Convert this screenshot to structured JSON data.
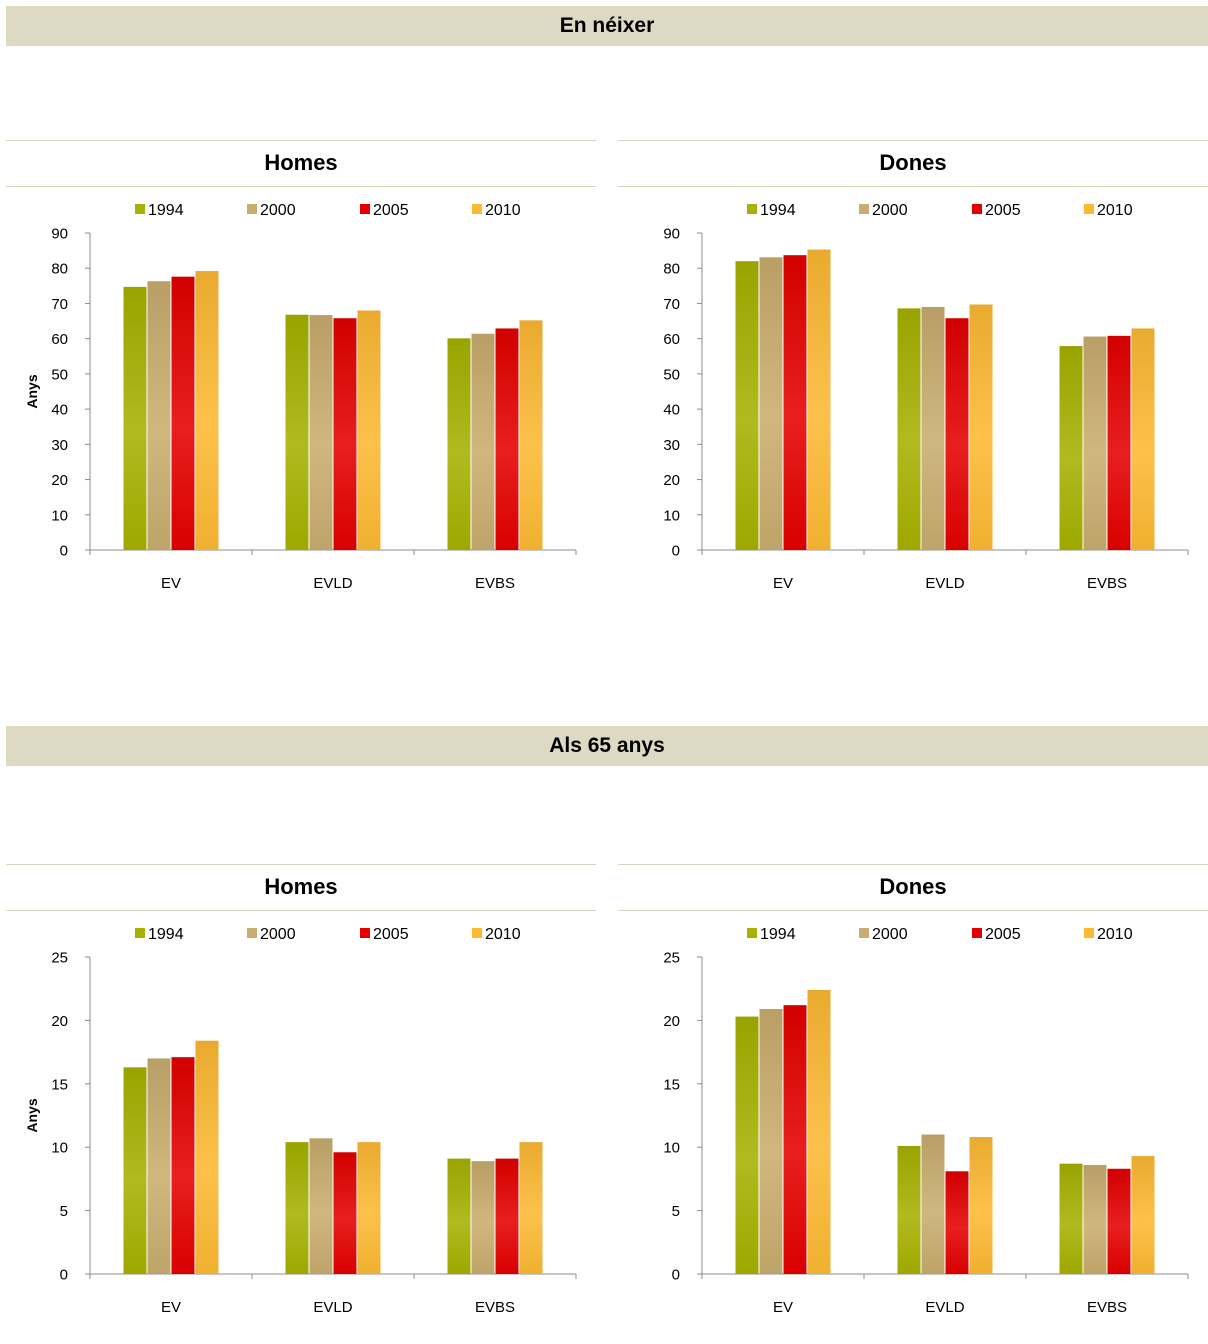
{
  "sections": [
    {
      "title": "En néixer"
    },
    {
      "title": "Als 65 anys"
    }
  ],
  "legend": [
    "1994",
    "2000",
    "2005",
    "2010"
  ],
  "colors": [
    "#a6b100",
    "#c9ad6e",
    "#e40000",
    "#fdb933"
  ],
  "chart_data": [
    {
      "type": "bar",
      "title": "Homes",
      "ylabel": "Anys",
      "categories": [
        "EV",
        "EVLD",
        "EVBS"
      ],
      "ylim": [
        0,
        90
      ],
      "yticks": [
        0,
        10,
        20,
        30,
        40,
        50,
        60,
        70,
        80,
        90
      ],
      "legend_position": "top",
      "series": [
        {
          "name": "1994",
          "values": [
            74.7,
            66.8,
            60.1
          ]
        },
        {
          "name": "2000",
          "values": [
            76.3,
            66.7,
            61.4
          ]
        },
        {
          "name": "2005",
          "values": [
            77.6,
            65.8,
            62.9
          ]
        },
        {
          "name": "2010",
          "values": [
            79.2,
            68.0,
            65.2
          ]
        }
      ]
    },
    {
      "type": "bar",
      "title": "Dones",
      "ylabel": "",
      "categories": [
        "EV",
        "EVLD",
        "EVBS"
      ],
      "ylim": [
        0,
        90
      ],
      "yticks": [
        0,
        10,
        20,
        30,
        40,
        50,
        60,
        70,
        80,
        90
      ],
      "legend_position": "top",
      "series": [
        {
          "name": "1994",
          "values": [
            82.0,
            68.6,
            57.9
          ]
        },
        {
          "name": "2000",
          "values": [
            83.1,
            69.0,
            60.6
          ]
        },
        {
          "name": "2005",
          "values": [
            83.7,
            65.8,
            60.8
          ]
        },
        {
          "name": "2010",
          "values": [
            85.3,
            69.7,
            62.9
          ]
        }
      ]
    },
    {
      "type": "bar",
      "title": "Homes",
      "ylabel": "Anys",
      "categories": [
        "EV",
        "EVLD",
        "EVBS"
      ],
      "ylim": [
        0,
        25
      ],
      "yticks": [
        0,
        5,
        10,
        15,
        20,
        25
      ],
      "legend_position": "top",
      "series": [
        {
          "name": "1994",
          "values": [
            16.3,
            10.4,
            9.1
          ]
        },
        {
          "name": "2000",
          "values": [
            17.0,
            10.7,
            8.9
          ]
        },
        {
          "name": "2005",
          "values": [
            17.1,
            9.6,
            9.1
          ]
        },
        {
          "name": "2010",
          "values": [
            18.4,
            10.4,
            10.4
          ]
        }
      ]
    },
    {
      "type": "bar",
      "title": "Dones",
      "ylabel": "",
      "categories": [
        "EV",
        "EVLD",
        "EVBS"
      ],
      "ylim": [
        0,
        25
      ],
      "yticks": [
        0,
        5,
        10,
        15,
        20,
        25
      ],
      "legend_position": "top",
      "series": [
        {
          "name": "1994",
          "values": [
            20.3,
            10.1,
            8.7
          ]
        },
        {
          "name": "2000",
          "values": [
            20.9,
            11.0,
            8.6
          ]
        },
        {
          "name": "2005",
          "values": [
            21.2,
            8.1,
            8.3
          ]
        },
        {
          "name": "2010",
          "values": [
            22.4,
            10.8,
            9.3
          ]
        }
      ]
    }
  ]
}
